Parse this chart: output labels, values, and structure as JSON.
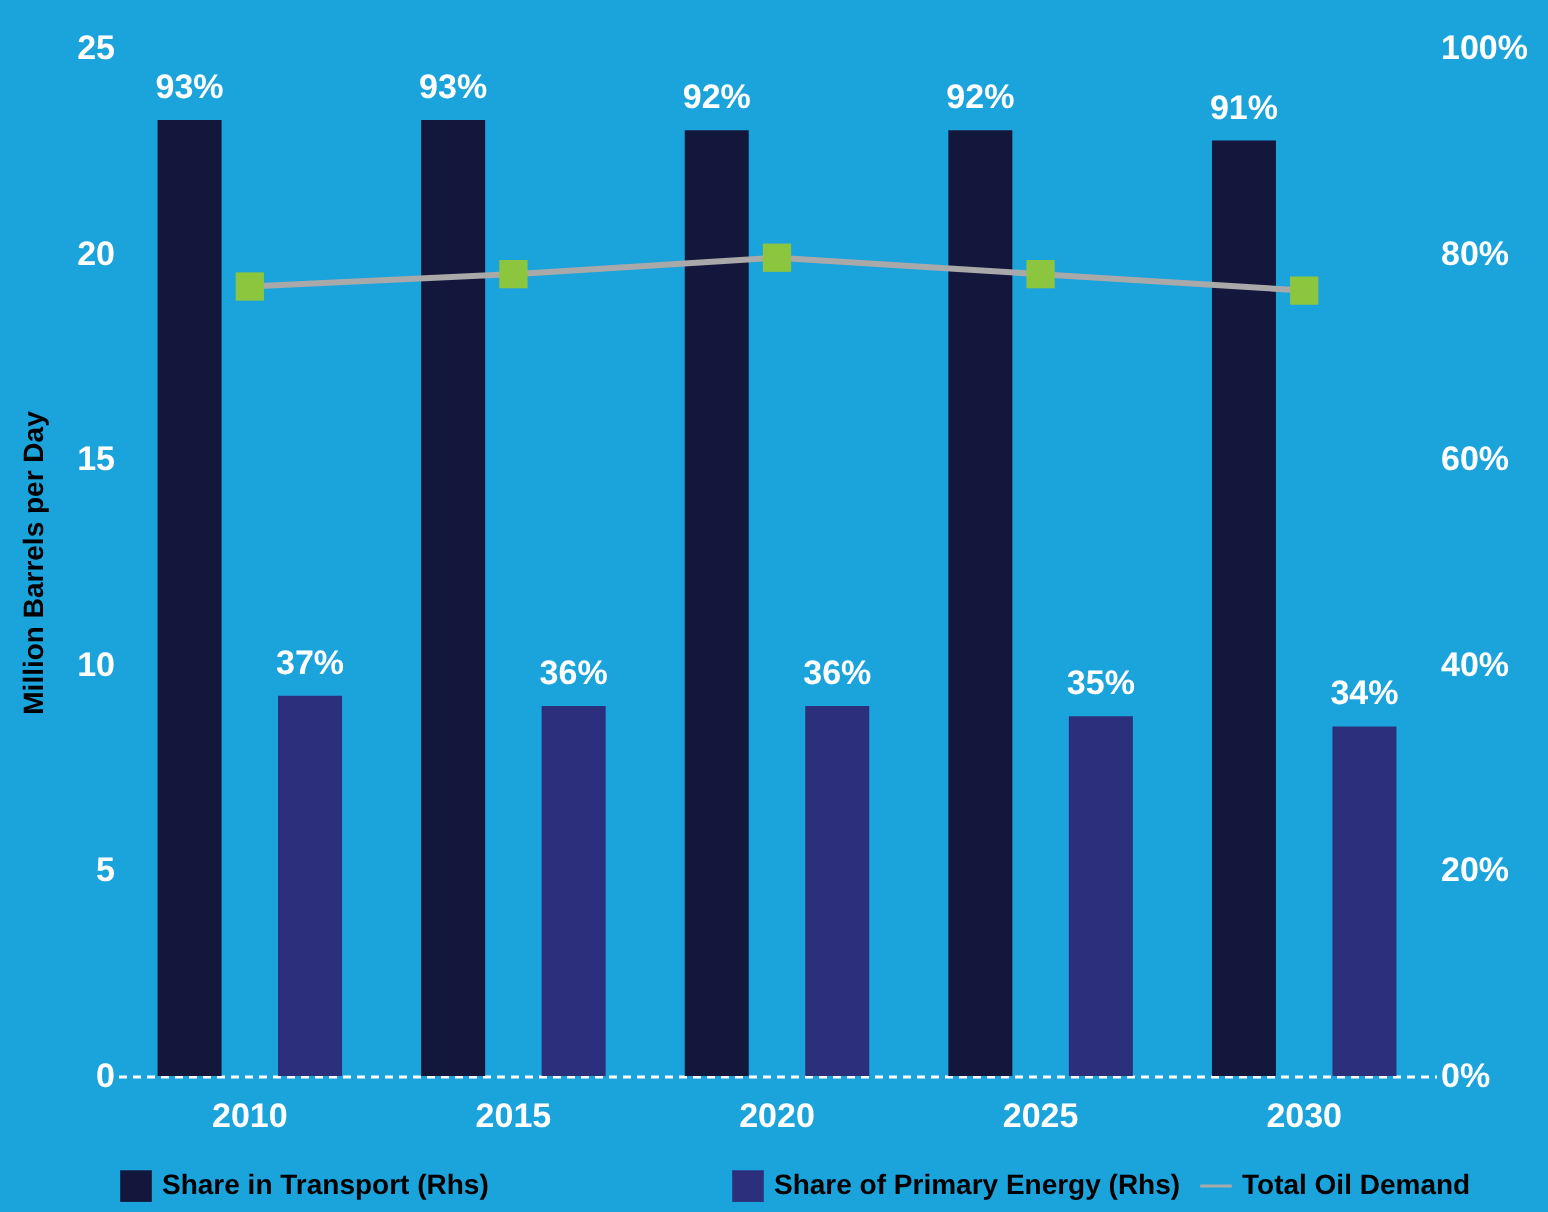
{
  "chart_data": {
    "type": "bar",
    "ylabel": "Million Barrels per Day",
    "categories": [
      "2010",
      "2015",
      "2020",
      "2025",
      "2030"
    ],
    "series": [
      {
        "name": "Share in Transport (Rhs)",
        "axis": "y2",
        "color": "#14173c",
        "values": [
          93,
          93,
          92,
          92,
          91
        ],
        "value_labels": [
          "93%",
          "93%",
          "92%",
          "92%",
          "91%"
        ]
      },
      {
        "name": "Share of Primary Energy (Rhs)",
        "axis": "y2",
        "color": "#2c2f7c",
        "values": [
          37,
          36,
          36,
          35,
          34
        ],
        "value_labels": [
          "37%",
          "36%",
          "36%",
          "35%",
          "34%"
        ]
      },
      {
        "name": "Total Oil Demand",
        "type": "line",
        "axis": "y",
        "color": "#a9a9a9",
        "marker": "square",
        "values": [
          19.2,
          19.5,
          19.9,
          19.5,
          19.1
        ]
      }
    ],
    "ylim": [
      0,
      25
    ],
    "yticks": [
      0,
      5,
      10,
      15,
      20,
      25
    ],
    "y2lim": [
      0,
      100
    ],
    "y2ticks": [
      {
        "value": 0,
        "label": "0%"
      },
      {
        "value": 20,
        "label": "20%"
      },
      {
        "value": 40,
        "label": "40%"
      },
      {
        "value": 60,
        "label": "60%"
      },
      {
        "value": 80,
        "label": "80%"
      },
      {
        "value": 100,
        "label": "100%"
      }
    ],
    "grid": false,
    "legend": "bottom",
    "line_style": "solid"
  }
}
